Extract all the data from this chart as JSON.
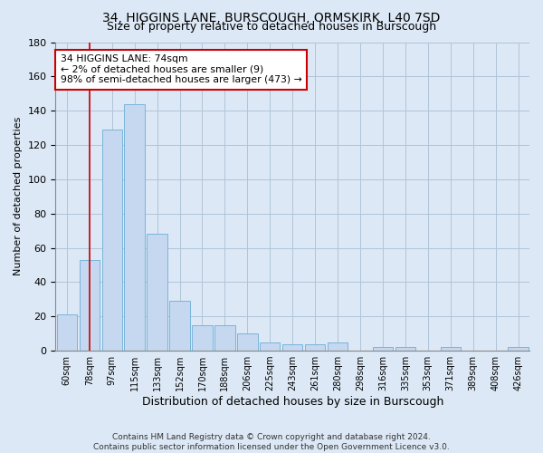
{
  "title": "34, HIGGINS LANE, BURSCOUGH, ORMSKIRK, L40 7SD",
  "subtitle": "Size of property relative to detached houses in Burscough",
  "xlabel": "Distribution of detached houses by size in Burscough",
  "ylabel": "Number of detached properties",
  "categories": [
    "60sqm",
    "78sqm",
    "97sqm",
    "115sqm",
    "133sqm",
    "152sqm",
    "170sqm",
    "188sqm",
    "206sqm",
    "225sqm",
    "243sqm",
    "261sqm",
    "280sqm",
    "298sqm",
    "316sqm",
    "335sqm",
    "353sqm",
    "371sqm",
    "389sqm",
    "408sqm",
    "426sqm"
  ],
  "values": [
    21,
    53,
    129,
    144,
    68,
    29,
    15,
    15,
    10,
    5,
    4,
    4,
    5,
    0,
    2,
    2,
    0,
    2,
    0,
    0,
    2
  ],
  "bar_color": "#c5d8f0",
  "bar_edge_color": "#6baed6",
  "property_bar_index": 1,
  "property_line_color": "#cc0000",
  "ylim": [
    0,
    180
  ],
  "yticks": [
    0,
    20,
    40,
    60,
    80,
    100,
    120,
    140,
    160,
    180
  ],
  "annotation_text": "34 HIGGINS LANE: 74sqm\n← 2% of detached houses are smaller (9)\n98% of semi-detached houses are larger (473) →",
  "annotation_box_color": "#ffffff",
  "annotation_border_color": "#cc0000",
  "footer_line1": "Contains HM Land Registry data © Crown copyright and database right 2024.",
  "footer_line2": "Contains public sector information licensed under the Open Government Licence v3.0.",
  "bg_color": "#dce8f5",
  "plot_bg_color": "#dce8f5",
  "grid_color": "#b0c4d8"
}
